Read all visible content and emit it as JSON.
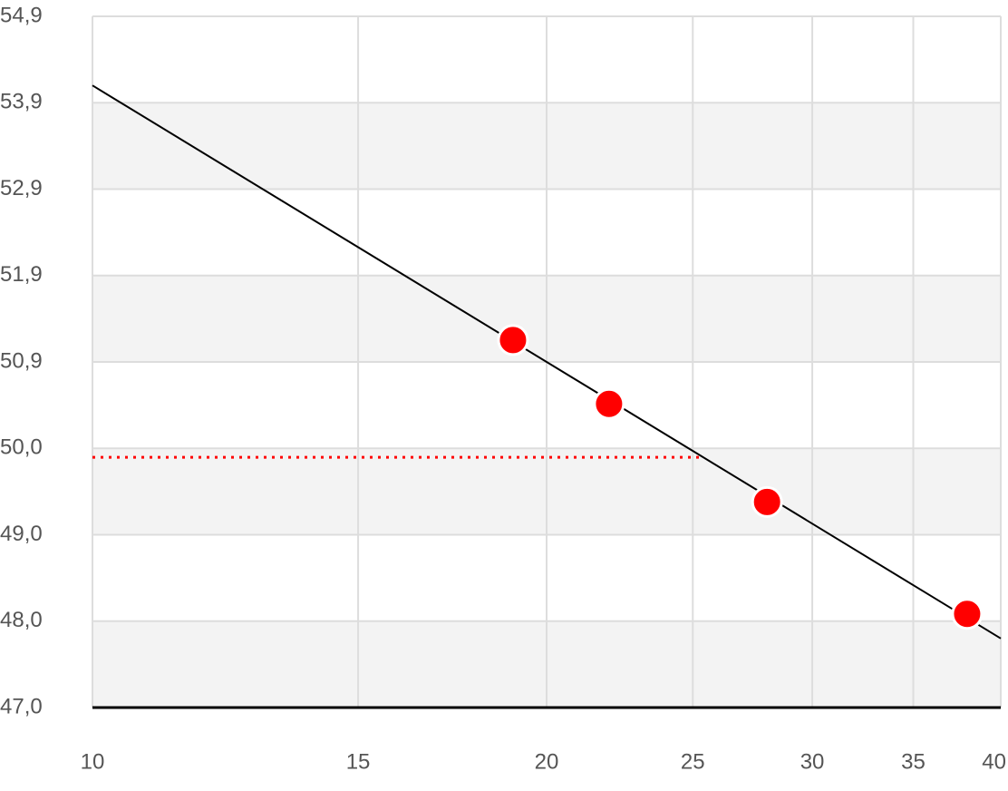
{
  "chart_data": {
    "type": "scatter",
    "x_scale": "log",
    "xlim": [
      10,
      40
    ],
    "xticks": [
      10,
      15,
      20,
      25,
      30,
      35,
      40
    ],
    "ylim": [
      47.0,
      54.9
    ],
    "yticks": [
      {
        "value": 47.0,
        "label": "47,0"
      },
      {
        "value": 47.9875,
        "label": "48,0"
      },
      {
        "value": 48.975,
        "label": "49,0"
      },
      {
        "value": 49.9625,
        "label": "50,0"
      },
      {
        "value": 50.95,
        "label": "50,9"
      },
      {
        "value": 51.9375,
        "label": "51,9"
      },
      {
        "value": 52.925,
        "label": "52,9"
      },
      {
        "value": 53.9125,
        "label": "53,9"
      },
      {
        "value": 54.9,
        "label": "54,9"
      }
    ],
    "grid": true,
    "band_color": "#f3f3f3",
    "series": [
      {
        "color": "#ff0000",
        "x": [
          19,
          22,
          28,
          38
        ],
        "values": [
          51.2,
          50.47,
          49.35,
          48.07
        ]
      }
    ],
    "trend_line": {
      "color": "#000000",
      "x": [
        10,
        40
      ],
      "values": [
        54.11,
        47.79
      ]
    },
    "reference_line": {
      "color": "#ff0000",
      "x": [
        10,
        25.4
      ],
      "values": [
        49.86,
        49.86
      ]
    }
  }
}
